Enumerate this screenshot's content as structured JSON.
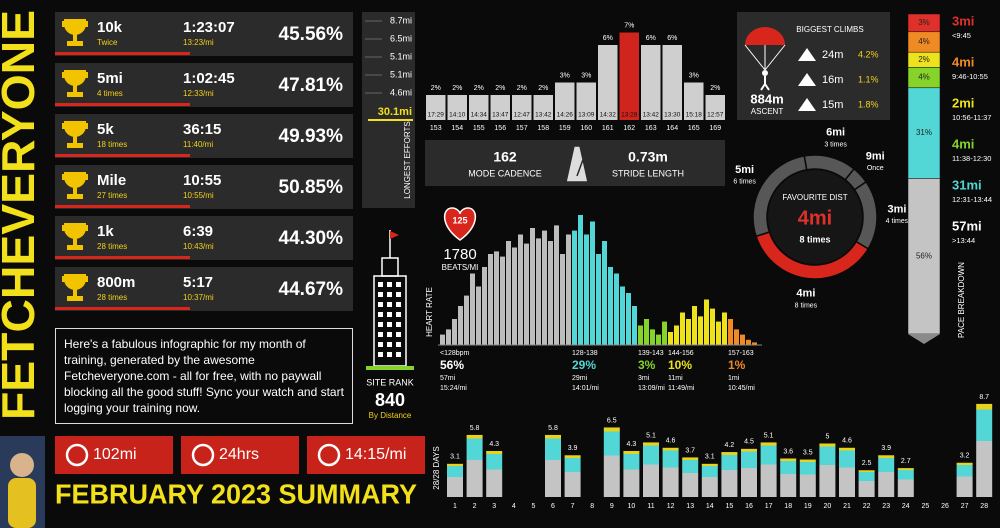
{
  "brand": "FETCHEVERYONE",
  "records": [
    {
      "name": "10k",
      "count": "Twice",
      "time": "1:23:07",
      "pace": "13:23/mi",
      "percent": "45.56%"
    },
    {
      "name": "5mi",
      "count": "4 times",
      "time": "1:02:45",
      "pace": "12:33/mi",
      "percent": "47.81%"
    },
    {
      "name": "5k",
      "count": "18 times",
      "time": "36:15",
      "pace": "11:40/mi",
      "percent": "49.93%"
    },
    {
      "name": "Mile",
      "count": "27 times",
      "time": "10:55",
      "pace": "10:55/mi",
      "percent": "50.85%"
    },
    {
      "name": "1k",
      "count": "28 times",
      "time": "6:39",
      "pace": "10:43/mi",
      "percent": "44.30%"
    },
    {
      "name": "800m",
      "count": "28 times",
      "time": "5:17",
      "pace": "10:37/mi",
      "percent": "44.67%"
    }
  ],
  "blurb": "Here's a fabulous infographic for my month of training, generated by the awesome Fetcheveryone.com - all for free, with no paywall blocking all the good stuff! Sync your watch and start logging your training now.",
  "totals": [
    "102mi",
    "24hrs",
    "14:15/mi"
  ],
  "title": "FEBRUARY 2023 SUMMARY",
  "longest_efforts": {
    "label": "LONGEST EFFORTS",
    "items": [
      "8.7mi",
      "6.5mi",
      "5.1mi",
      "5.1mi",
      "4.6mi"
    ],
    "total": "30.1mi"
  },
  "site_rank": {
    "label": "SITE RANK",
    "value": "840",
    "basis": "By Distance"
  },
  "cadence": {
    "highlight": 9,
    "bars": [
      {
        "bpm": "153",
        "pace": "17:29",
        "pct": 2,
        "label": "2%"
      },
      {
        "bpm": "154",
        "pace": "14:10",
        "pct": 2,
        "label": "2%"
      },
      {
        "bpm": "155",
        "pace": "14:34",
        "pct": 2,
        "label": "2%"
      },
      {
        "bpm": "156",
        "pace": "13:47",
        "pct": 2,
        "label": "2%"
      },
      {
        "bpm": "157",
        "pace": "12:47",
        "pct": 2,
        "label": "2%"
      },
      {
        "bpm": "158",
        "pace": "13:42",
        "pct": 2,
        "label": "2%"
      },
      {
        "bpm": "159",
        "pace": "14:26",
        "pct": 3,
        "label": "3%"
      },
      {
        "bpm": "160",
        "pace": "13:09",
        "pct": 3,
        "label": "3%"
      },
      {
        "bpm": "161",
        "pace": "14:32",
        "pct": 6,
        "label": "6%"
      },
      {
        "bpm": "162",
        "pace": "13:28",
        "pct": 7,
        "label": "7%"
      },
      {
        "bpm": "163",
        "pace": "13:42",
        "pct": 6,
        "label": "6%"
      },
      {
        "bpm": "164",
        "pace": "13:30",
        "pct": 6,
        "label": "6%"
      },
      {
        "bpm": "165",
        "pace": "15:18",
        "pct": 3,
        "label": "3%"
      },
      {
        "bpm": "169",
        "pace": "12:57",
        "pct": 2,
        "label": "2%"
      }
    ],
    "mode": {
      "value": "162",
      "label": "MODE CADENCE"
    },
    "stride": {
      "value": "0.73m",
      "label": "STRIDE LENGTH"
    }
  },
  "climbs": {
    "title": "BIGGEST CLIMBS",
    "items": [
      {
        "height": "24m",
        "grade": "4.2%"
      },
      {
        "height": "16m",
        "grade": "1.1%"
      },
      {
        "height": "15m",
        "grade": "1.8%"
      }
    ],
    "ascent": "884m",
    "ascent_label": "ASCENT"
  },
  "favourite": {
    "title": "FAVOURITE DIST",
    "distance": "4mi",
    "times": "8 times",
    "segments": [
      {
        "distance": "6mi",
        "count": 3,
        "count_label": "3 times"
      },
      {
        "distance": "9mi",
        "count": 1,
        "count_label": "Once"
      },
      {
        "distance": "3mi",
        "count": 4,
        "count_label": "4 times"
      },
      {
        "distance": "4mi",
        "count": 8,
        "count_label": "8 times",
        "color": "#d9261c"
      },
      {
        "distance": "5mi",
        "count": 6,
        "count_label": "6 times"
      }
    ]
  },
  "heart_rate": {
    "label": "HEART RATE",
    "avg": "125",
    "beats": "1780",
    "unit": "BEATS/MI",
    "zones": [
      {
        "range": "<128bpm",
        "pct": 56,
        "pct_label": "56%",
        "distance": "57mi",
        "pace": "15:24/mi",
        "color": "#bdbdbd",
        "bars": [
          8,
          12,
          20,
          30,
          38,
          55,
          45,
          60,
          70,
          72,
          68,
          80,
          75,
          85,
          78,
          90,
          82,
          88,
          80,
          92,
          70,
          85
        ]
      },
      {
        "range": "128-138",
        "pct": 29,
        "pct_label": "29%",
        "distance": "29mi",
        "pace": "14:01/mi",
        "color": "#52d6d6",
        "bars": [
          88,
          100,
          85,
          95,
          70,
          80,
          60,
          55,
          45,
          40,
          30
        ]
      },
      {
        "range": "139-143",
        "pct": 3,
        "pct_label": "3%",
        "distance": "3mi",
        "pace": "13:09/mi",
        "color": "#86d42a",
        "bars": [
          15,
          20,
          12,
          8,
          18
        ]
      },
      {
        "range": "144-156",
        "pct": 10,
        "pct_label": "10%",
        "distance": "11mi",
        "pace": "11:49/mi",
        "color": "#ede21c",
        "bars": [
          10,
          15,
          25,
          20,
          30,
          22,
          35,
          28,
          18,
          25
        ]
      },
      {
        "range": "157-163",
        "pct": 1,
        "pct_label": "1%",
        "distance": "1mi",
        "pace": "10:45/mi",
        "color": "#f08a24",
        "bars": [
          20,
          12,
          8,
          4,
          2
        ]
      }
    ]
  },
  "pace_breakdown": {
    "label": "PACE BREAKDOWN",
    "segments": [
      {
        "distance": "3mi",
        "range": "<9:45",
        "pct": 3,
        "pct_label": "3%",
        "color": "#e0302a"
      },
      {
        "distance": "4mi",
        "range": "9:46-10:55",
        "pct": 4,
        "pct_label": "4%",
        "color": "#f08a24"
      },
      {
        "distance": "2mi",
        "range": "10:56-11:37",
        "pct": 2,
        "pct_label": "2%",
        "color": "#ede21c"
      },
      {
        "distance": "4mi",
        "range": "11:38-12:30",
        "pct": 4,
        "pct_label": "4%",
        "color": "#86d42a"
      },
      {
        "distance": "31mi",
        "range": "12:31-13:44",
        "pct": 31,
        "pct_label": "31%",
        "color": "#52d6d6"
      },
      {
        "distance": "57mi",
        "range": ">13:44",
        "pct": 56,
        "pct_label": "56%",
        "color": "#c4c4c4"
      }
    ]
  },
  "daily": {
    "label": "28/28 DAYS",
    "days": [
      "1",
      "2",
      "3",
      "4",
      "5",
      "6",
      "7",
      "8",
      "9",
      "10",
      "11",
      "12",
      "13",
      "14",
      "15",
      "16",
      "17",
      "18",
      "19",
      "20",
      "21",
      "22",
      "23",
      "24",
      "25",
      "26",
      "27",
      "28"
    ],
    "values": [
      3.1,
      5.8,
      4.3,
      null,
      null,
      5.8,
      3.9,
      null,
      6.5,
      4.3,
      5.1,
      4.6,
      3.7,
      3.1,
      4.2,
      4.5,
      5.1,
      3.6,
      3.5,
      5,
      4.6,
      2.5,
      3.9,
      2.7,
      null,
      null,
      3.2,
      8.7
    ]
  }
}
